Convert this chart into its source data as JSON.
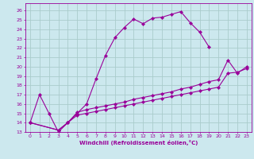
{
  "xlabel": "Windchill (Refroidissement éolien,°C)",
  "bg_color": "#cce8ee",
  "line_color": "#990099",
  "grid_color": "#aacccc",
  "xlim": [
    -0.5,
    23.5
  ],
  "ylim": [
    13,
    26.8
  ],
  "xticks": [
    0,
    1,
    2,
    3,
    4,
    5,
    6,
    7,
    8,
    9,
    10,
    11,
    12,
    13,
    14,
    15,
    16,
    17,
    18,
    19,
    20,
    21,
    22,
    23
  ],
  "yticks": [
    13,
    14,
    15,
    16,
    17,
    18,
    19,
    20,
    21,
    22,
    23,
    24,
    25,
    26
  ],
  "curve1_x": [
    0,
    1,
    2,
    3,
    4,
    5,
    6,
    7,
    8,
    9,
    10,
    11,
    12,
    13,
    14,
    15,
    16,
    17,
    18,
    19
  ],
  "curve1_y": [
    14,
    17,
    15,
    13,
    14,
    15,
    16,
    18.7,
    21.2,
    23.1,
    24.2,
    25.1,
    24.6,
    25.2,
    25.3,
    25.6,
    25.9,
    24.7,
    23.7,
    22.1
  ],
  "curve2_x": [
    0,
    3,
    4,
    5,
    6,
    7,
    8,
    9,
    10,
    11,
    12,
    13,
    14,
    15,
    16,
    17,
    18,
    19,
    20,
    21,
    22,
    23
  ],
  "curve2_y": [
    14,
    13.2,
    14.0,
    15.1,
    15.4,
    15.6,
    15.8,
    16.0,
    16.2,
    16.5,
    16.7,
    16.9,
    17.1,
    17.3,
    17.6,
    17.8,
    18.1,
    18.4,
    18.6,
    20.7,
    19.3,
    20.0
  ],
  "curve3_x": [
    0,
    3,
    4,
    5,
    6,
    7,
    8,
    9,
    10,
    11,
    12,
    13,
    14,
    15,
    16,
    17,
    18,
    19,
    20,
    21,
    22,
    23
  ],
  "curve3_y": [
    14,
    13.2,
    14.0,
    14.8,
    15.0,
    15.2,
    15.4,
    15.6,
    15.8,
    16.0,
    16.2,
    16.4,
    16.6,
    16.8,
    17.0,
    17.2,
    17.4,
    17.6,
    17.8,
    19.3,
    19.4,
    19.8
  ]
}
